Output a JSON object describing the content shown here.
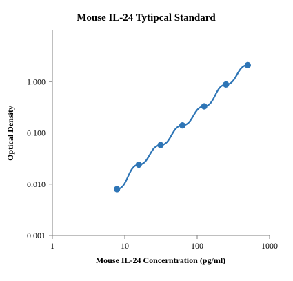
{
  "chart_data": {
    "type": "scatter",
    "title": "Mouse IL-24 Tytipcal Standard",
    "xlabel": "Mouse IL-24 Concerntration  (pg/ml)",
    "ylabel": "Optical Density",
    "x_scale": "log",
    "y_scale": "log",
    "xlim": [
      1,
      1000
    ],
    "ylim": [
      0.001,
      10
    ],
    "x_ticks": [
      {
        "value": 1,
        "label": "1"
      },
      {
        "value": 10,
        "label": "10"
      },
      {
        "value": 100,
        "label": "100"
      },
      {
        "value": 1000,
        "label": "1000"
      }
    ],
    "y_ticks": [
      {
        "value": 0.001,
        "label": "0.001"
      },
      {
        "value": 0.01,
        "label": "0.010"
      },
      {
        "value": 0.1,
        "label": "0.100"
      },
      {
        "value": 1,
        "label": "1.000"
      }
    ],
    "grid": false,
    "legend": "none",
    "series": [
      {
        "color": "#2E75B6",
        "x": [
          7.8,
          15.6,
          31.25,
          62.5,
          125,
          250,
          500
        ],
        "y": [
          0.008,
          0.024,
          0.058,
          0.14,
          0.33,
          0.88,
          2.1
        ]
      }
    ]
  }
}
